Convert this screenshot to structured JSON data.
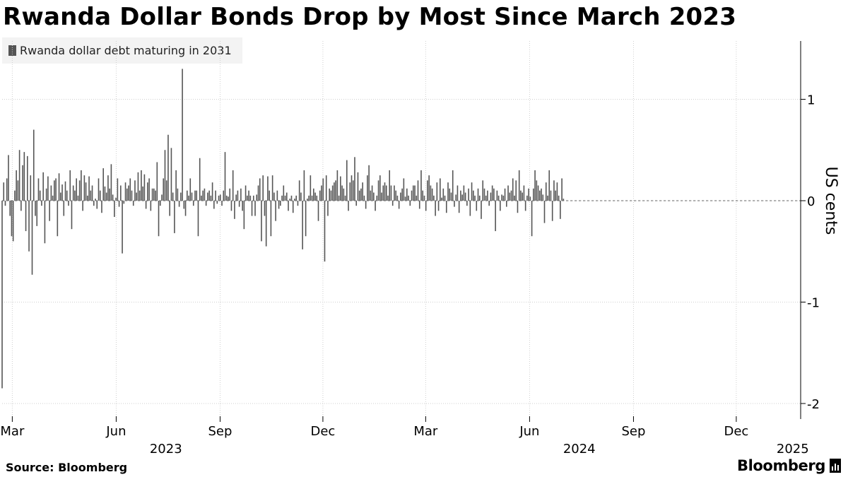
{
  "title": "Rwanda Dollar Bonds Drop by Most Since March 2023",
  "source": "Source: Bloomberg",
  "brand": "Bloomberg",
  "colors": {
    "bar": "#555555",
    "grid": "#c8c8c8",
    "axis": "#000000"
  },
  "chart_data": {
    "type": "bar",
    "title": "Rwanda Dollar Bonds Drop by Most Since March 2023",
    "ylabel": "US cents",
    "xlabel": "",
    "ylim": [
      -2.1,
      1.6
    ],
    "y_ticks": [
      1,
      0,
      -1,
      -2
    ],
    "y_tick_labels": [
      "1",
      "0",
      "-1",
      "-2"
    ],
    "y_axis_position": "right",
    "grid": true,
    "legend": {
      "entries": [
        "Rwanda dollar debt maturing in 2031"
      ],
      "position": "top-left"
    },
    "x_range": [
      "2023-02-20",
      "2025-01-27"
    ],
    "x_ticks": [
      {
        "date": "2023-03-01",
        "label": "Mar"
      },
      {
        "date": "2023-06-01",
        "label": "Jun"
      },
      {
        "date": "2023-09-01",
        "label": "Sep"
      },
      {
        "date": "2023-12-01",
        "label": "Dec"
      },
      {
        "date": "2024-03-01",
        "label": "Mar"
      },
      {
        "date": "2024-06-01",
        "label": "Jun"
      },
      {
        "date": "2024-09-01",
        "label": "Sep"
      },
      {
        "date": "2024-12-01",
        "label": "Dec"
      }
    ],
    "year_labels": [
      {
        "date": "2023-07-15",
        "label": "2023"
      },
      {
        "date": "2024-07-15",
        "label": "2024"
      },
      {
        "date": "2025-01-20",
        "label": "2025"
      }
    ],
    "series": [
      {
        "name": "Rwanda dollar debt maturing in 2031",
        "x_start": "2023-02-20",
        "x_step_days": 1.4,
        "values": [
          -1.85,
          0.18,
          -0.05,
          0.22,
          0.45,
          -0.15,
          -0.35,
          -0.4,
          0.1,
          0.3,
          0.2,
          0.5,
          -0.1,
          0.35,
          0.48,
          -0.3,
          0.44,
          -0.5,
          0.25,
          -0.73,
          0.7,
          -0.15,
          -0.25,
          0.22,
          0.1,
          -0.05,
          0.28,
          -0.42,
          0.12,
          0.24,
          -0.2,
          0.15,
          0.05,
          0.2,
          0.22,
          -0.35,
          0.27,
          0.08,
          0.16,
          -0.15,
          0.19,
          0.1,
          -0.05,
          0.3,
          -0.28,
          0.15,
          0.1,
          0.22,
          0.05,
          0.2,
          0.3,
          -0.1,
          0.25,
          0.18,
          0.05,
          0.24,
          0.1,
          0.15,
          -0.05,
          0.02,
          -0.08,
          0.22,
          0.1,
          -0.12,
          0.32,
          0.14,
          0.08,
          0.25,
          0.12,
          0.36,
          0.06,
          -0.16,
          0.03,
          0.22,
          -0.06,
          0.15,
          -0.52,
          -0.03,
          0.18,
          0.12,
          0.15,
          0.22,
          0.1,
          -0.05,
          0.2,
          0.08,
          0.28,
          0.1,
          0.3,
          0.14,
          0.26,
          -0.08,
          0.18,
          0.22,
          -0.1,
          0.12,
          0.12,
          0.1,
          0.38,
          -0.35,
          -0.05,
          0.06,
          0.22,
          0.5,
          0.2,
          0.65,
          -0.15,
          0.52,
          0.08,
          -0.32,
          0.3,
          0.12,
          -0.06,
          0.08,
          1.3,
          -0.08,
          -0.15,
          0.1,
          0.05,
          0.22,
          0.08,
          -0.05,
          0.1,
          0.1,
          -0.35,
          0.42,
          0.05,
          0.1,
          0.12,
          -0.05,
          0.08,
          0.1,
          0.05,
          0.18,
          -0.08,
          0.1,
          -0.03,
          0.05,
          0.06,
          -0.05,
          0.1,
          0.48,
          0.05,
          0.04,
          0.12,
          -0.1,
          0.3,
          -0.18,
          0.06,
          0.1,
          -0.06,
          0.12,
          -0.1,
          -0.28,
          0.15,
          0.05,
          0.1,
          0.05,
          -0.15,
          0.05,
          -0.15,
          0.06,
          0.15,
          0.22,
          -0.4,
          0.25,
          -0.15,
          -0.45,
          0.24,
          0.1,
          -0.35,
          0.25,
          0.08,
          -0.2,
          0.1,
          -0.08,
          -0.05,
          0.05,
          0.15,
          0.05,
          0.08,
          -0.1,
          0.02,
          0.05,
          -0.12,
          0.02,
          0.05,
          -0.05,
          0.2,
          0.08,
          -0.48,
          0.3,
          -0.35,
          0.02,
          0.05,
          0.25,
          0.05,
          0.12,
          0.08,
          0.05,
          -0.2,
          0.1,
          0.15,
          0.22,
          -0.6,
          0.25,
          -0.15,
          0.12,
          0.1,
          0.15,
          0.18,
          0.2,
          0.3,
          0.05,
          0.24,
          0.15,
          0.12,
          0.05,
          0.4,
          -0.1,
          0.18,
          0.25,
          0.2,
          0.43,
          -0.05,
          0.28,
          0.1,
          0.12,
          0.18,
          0.05,
          -0.08,
          0.25,
          0.35,
          0.1,
          0.15,
          0.08,
          -0.1,
          0.05,
          0.2,
          0.25,
          0.08,
          0.15,
          0.18,
          0.15,
          0.05,
          0.3,
          0.15,
          -0.05,
          0.15,
          0.1,
          0.05,
          -0.08,
          0.08,
          0.12,
          0.22,
          0.04,
          0.12,
          0.05,
          -0.05,
          0.1,
          0.15,
          0.15,
          0.05,
          0.2,
          -0.08,
          0.3,
          0.1,
          0.05,
          -0.1,
          0.2,
          0.25,
          0.15,
          0.12,
          0.05,
          -0.15,
          0.18,
          -0.1,
          0.22,
          0.03,
          0.12,
          0.05,
          -0.12,
          0.18,
          0.12,
          0.08,
          0.3,
          -0.06,
          0.06,
          0.15,
          -0.12,
          0.1,
          0.06,
          0.15,
          0.08,
          -0.05,
          0.12,
          -0.15,
          0.18,
          0.1,
          0.05,
          -0.1,
          0.12,
          0.05,
          -0.18,
          0.2,
          0.12,
          0.05,
          0.1,
          -0.05,
          0.08,
          0.15,
          0.12,
          -0.3,
          0.1,
          0.05,
          -0.1,
          0.06,
          0.05,
          0.12,
          -0.06,
          0.15,
          0.08,
          0.1,
          0.22,
          0.05,
          0.2,
          -0.12,
          0.3,
          0.1,
          0.08,
          0.15,
          -0.1,
          0.05,
          0.12,
          0.04,
          -0.35,
          0.12,
          0.3,
          0.2,
          0.15,
          0.1,
          0.12,
          0.06,
          -0.22,
          0.18,
          0.05,
          0.3,
          0.1,
          -0.2,
          0.2,
          0.1,
          0.18,
          0.05,
          -0.18,
          0.22,
          0.02
        ]
      }
    ]
  }
}
